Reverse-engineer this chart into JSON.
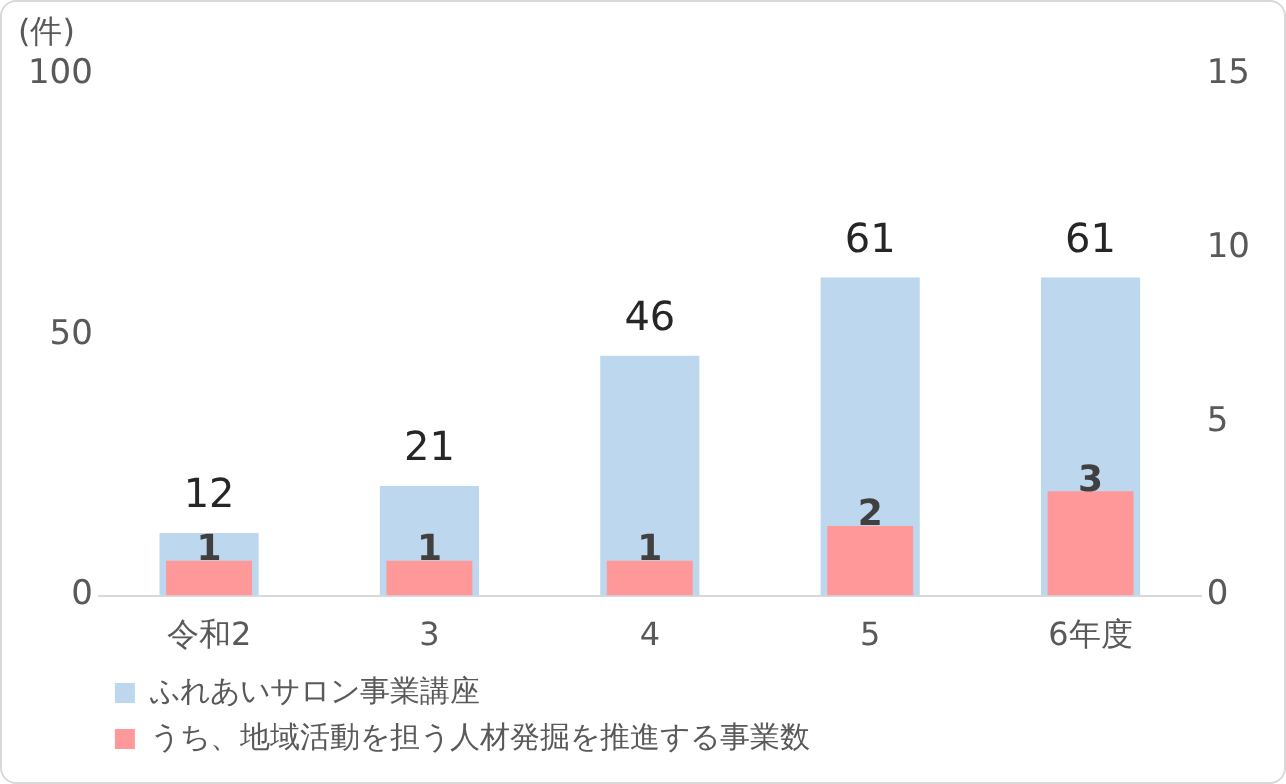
{
  "chart_data": {
    "type": "bar",
    "ylabel": "(件)",
    "categories": [
      "令和2",
      "3",
      "4",
      "5",
      "6年度"
    ],
    "series": [
      {
        "name": "ふれあいサロン事業講座",
        "color": "#bdd7ee",
        "values": [
          12,
          21,
          46,
          61,
          61
        ]
      },
      {
        "name": "うち、地域活動を担う人材発掘を推進する事業数",
        "color": "#ff9999",
        "values": [
          1,
          1,
          1,
          2,
          3
        ],
        "axis": "y2"
      }
    ],
    "ylim": [
      0,
      100
    ],
    "yticks": [
      0,
      50,
      100
    ],
    "y2lim": [
      0,
      15
    ],
    "y2ticks": [
      0,
      5,
      10,
      15
    ],
    "data_labels": true,
    "grid": false,
    "legend": "bottom"
  }
}
